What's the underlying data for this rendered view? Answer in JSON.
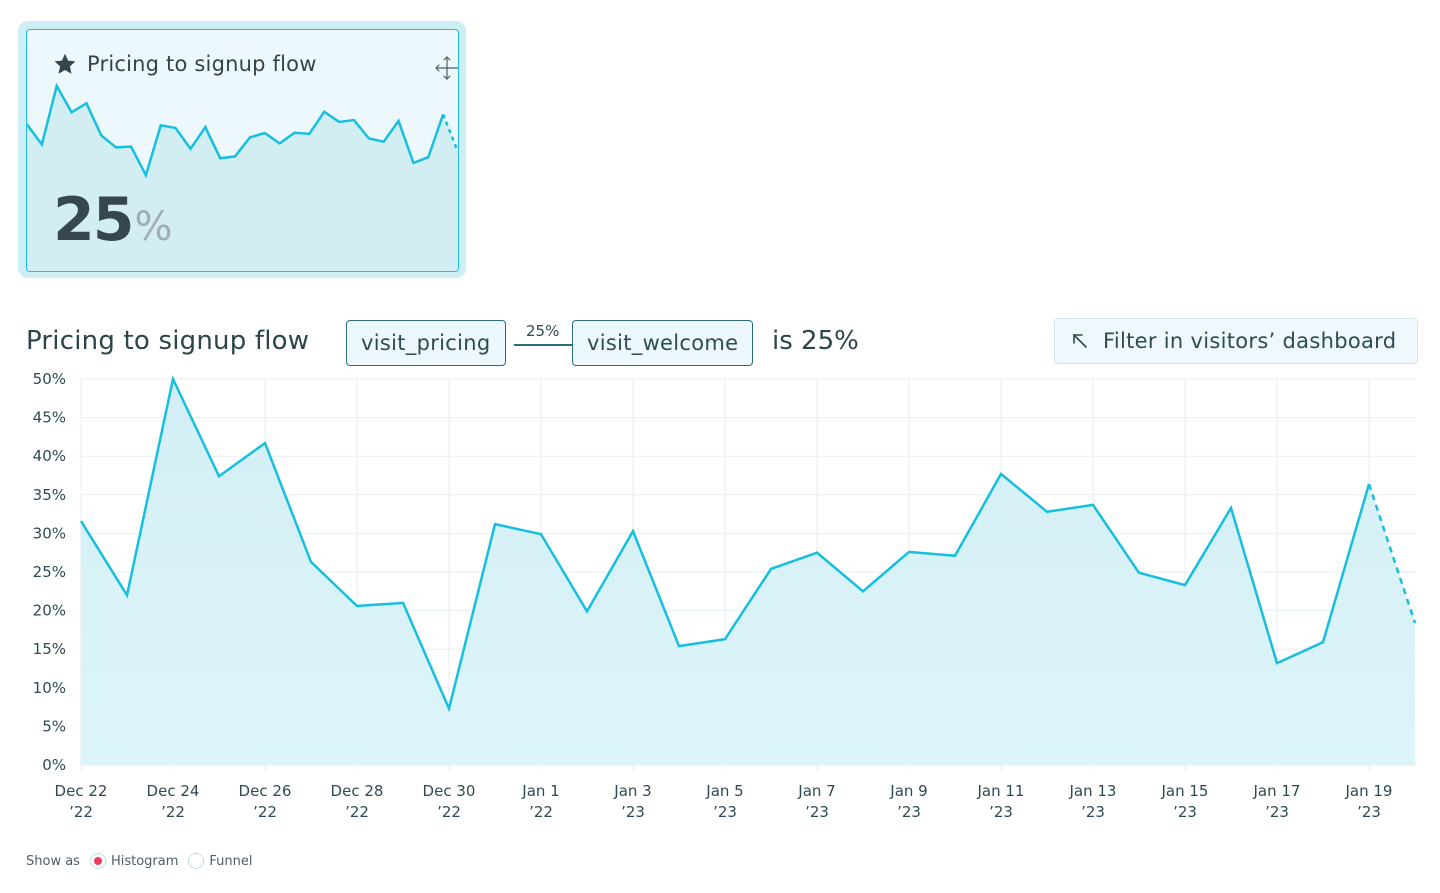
{
  "widget": {
    "title": "Pricing to signup flow",
    "star_icon": "star-icon",
    "move_icon": "move-icon",
    "value": "25",
    "unit": "%"
  },
  "header": {
    "title": "Pricing to signup flow",
    "step_from": "visit_pricing",
    "step_rate": "25%",
    "step_to": "visit_welcome",
    "result_label": "is 25%",
    "filter_button": {
      "icon": "arrow-up-left-icon",
      "label": "Filter in visitors’ dashboard"
    }
  },
  "show_as": {
    "label": "Show as",
    "options": [
      {
        "label": "Histogram",
        "checked": true
      },
      {
        "label": "Funnel",
        "checked": false
      }
    ]
  },
  "colors": {
    "line": "#16bfdf",
    "fill_top": "#d2eef4",
    "fill_bottom": "#ddf5fa",
    "grid": "#e6eef3",
    "text": "#2e4a52",
    "radio_checked": "#e8405a"
  },
  "chart_data": {
    "type": "area",
    "title": "Pricing to signup flow",
    "xlabel": "",
    "ylabel": "",
    "ylim": [
      0,
      50
    ],
    "grid": true,
    "yticks": [
      "0%",
      "5%",
      "10%",
      "15%",
      "20%",
      "25%",
      "30%",
      "35%",
      "40%",
      "45%",
      "50%"
    ],
    "xtick_labels": [
      [
        "Dec 22",
        "’22"
      ],
      [
        "Dec 24",
        "’22"
      ],
      [
        "Dec 26",
        "’22"
      ],
      [
        "Dec 28",
        "’22"
      ],
      [
        "Dec 30",
        "’22"
      ],
      [
        "Jan 1",
        "’22"
      ],
      [
        "Jan 3",
        "’23"
      ],
      [
        "Jan 5",
        "’23"
      ],
      [
        "Jan 7",
        "’23"
      ],
      [
        "Jan 9",
        "’23"
      ],
      [
        "Jan 11",
        "’23"
      ],
      [
        "Jan 13",
        "’23"
      ],
      [
        "Jan 15",
        "’23"
      ],
      [
        "Jan 17",
        "’23"
      ],
      [
        "Jan 19",
        "’23"
      ]
    ],
    "x": [
      "Dec 22",
      "Dec 23",
      "Dec 24",
      "Dec 25",
      "Dec 26",
      "Dec 27",
      "Dec 28",
      "Dec 29",
      "Dec 30",
      "Dec 31",
      "Jan 1",
      "Jan 2",
      "Jan 3",
      "Jan 4",
      "Jan 5",
      "Jan 6",
      "Jan 7",
      "Jan 8",
      "Jan 9",
      "Jan 10",
      "Jan 11",
      "Jan 12",
      "Jan 13",
      "Jan 14",
      "Jan 15",
      "Jan 16",
      "Jan 17",
      "Jan 18",
      "Jan 19",
      "Jan 20"
    ],
    "series": [
      {
        "name": "visit_pricing → visit_welcome conversion",
        "values": [
          31.6,
          22.0,
          50.0,
          37.4,
          41.7,
          26.3,
          20.6,
          21.0,
          7.3,
          31.2,
          29.9,
          19.9,
          30.3,
          15.4,
          16.3,
          25.4,
          27.5,
          22.5,
          27.6,
          27.1,
          37.7,
          32.8,
          33.7,
          24.9,
          23.3,
          33.3,
          13.2,
          15.9,
          36.4,
          18.4
        ],
        "incomplete_last_point": true
      }
    ]
  }
}
